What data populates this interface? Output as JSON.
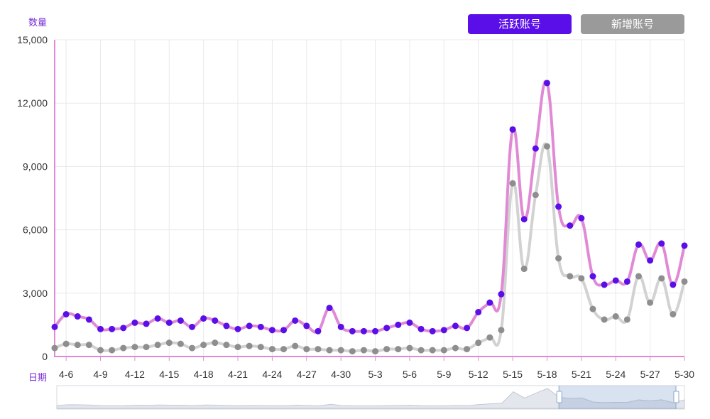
{
  "legend": {
    "active_label": "活跃账号",
    "new_label": "新增账号",
    "active_color": "#5a0fe8",
    "new_color": "#9a9a9a"
  },
  "chart_data": {
    "type": "line",
    "title": "",
    "xlabel": "日期",
    "ylabel": "数量",
    "ylim": [
      0,
      15000
    ],
    "yticks": [
      "0",
      "3,000",
      "6,000",
      "9,000",
      "12,000",
      "15,000"
    ],
    "x_tick_labels": [
      "4-6",
      "4-9",
      "4-12",
      "4-15",
      "4-18",
      "4-21",
      "4-24",
      "4-27",
      "4-30",
      "5-3",
      "5-6",
      "5-9",
      "5-12",
      "5-15",
      "5-18",
      "5-21",
      "5-24",
      "5-27",
      "5-30"
    ],
    "x": [
      "4-5",
      "4-6",
      "4-7",
      "4-8",
      "4-9",
      "4-10",
      "4-11",
      "4-12",
      "4-13",
      "4-14",
      "4-15",
      "4-16",
      "4-17",
      "4-18",
      "4-19",
      "4-20",
      "4-21",
      "4-22",
      "4-23",
      "4-24",
      "4-25",
      "4-26",
      "4-27",
      "4-28",
      "4-29",
      "4-30",
      "5-1",
      "5-2",
      "5-3",
      "5-4",
      "5-5",
      "5-6",
      "5-7",
      "5-8",
      "5-9",
      "5-10",
      "5-11",
      "5-12",
      "5-13",
      "5-14",
      "5-15",
      "5-16",
      "5-17",
      "5-18",
      "5-19",
      "5-20",
      "5-21",
      "5-22",
      "5-23",
      "5-24",
      "5-25",
      "5-26",
      "5-27",
      "5-28",
      "5-29",
      "5-30"
    ],
    "series": [
      {
        "name": "活跃账号",
        "color": "#5a0fe8",
        "line_color": "#e08ad6",
        "values": [
          1400,
          2000,
          1900,
          1750,
          1300,
          1300,
          1350,
          1600,
          1550,
          1800,
          1600,
          1700,
          1400,
          1800,
          1700,
          1450,
          1300,
          1450,
          1400,
          1250,
          1250,
          1700,
          1450,
          1200,
          2300,
          1400,
          1200,
          1200,
          1200,
          1350,
          1500,
          1600,
          1300,
          1200,
          1250,
          1450,
          1350,
          2100,
          2550,
          2950,
          10750,
          6500,
          9850,
          12950,
          7100,
          6200,
          6550,
          3800,
          3400,
          3600,
          3550,
          5300,
          4550,
          5350,
          3400,
          5250
        ]
      },
      {
        "name": "新增账号",
        "color": "#8e8e8e",
        "line_color": "#d2d2d2",
        "values": [
          400,
          600,
          550,
          550,
          300,
          300,
          400,
          450,
          450,
          550,
          650,
          600,
          400,
          550,
          650,
          550,
          450,
          500,
          450,
          350,
          350,
          500,
          350,
          350,
          300,
          300,
          250,
          300,
          250,
          350,
          350,
          400,
          300,
          300,
          300,
          400,
          350,
          650,
          900,
          1250,
          8200,
          4150,
          7650,
          9950,
          4650,
          3800,
          3700,
          2250,
          1750,
          1900,
          1750,
          3800,
          2550,
          3700,
          2000,
          3550
        ]
      }
    ],
    "grid": true,
    "legend_position": "top-right",
    "data_zoom": {
      "range_start": 0.8,
      "range_end": 1.0
    }
  }
}
